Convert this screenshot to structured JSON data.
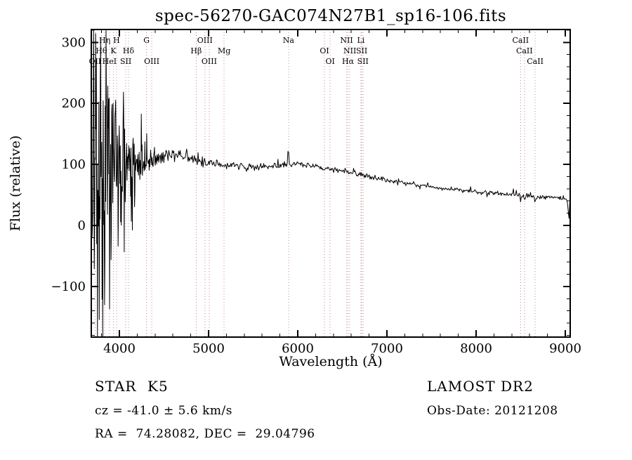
{
  "title": "spec-56270-GAC074N27B1_sp16-106.fits",
  "chart_data": {
    "type": "line",
    "title": "spec-56270-GAC074N27B1_sp16-106.fits",
    "xlabel": "Wavelength (Å)",
    "ylabel": "Flux (relative)",
    "xlim": [
      3685,
      9055
    ],
    "ylim": [
      -183,
      321
    ],
    "xticks": [
      4000,
      5000,
      6000,
      7000,
      8000,
      9000
    ],
    "yticks": [
      -100,
      0,
      100,
      200,
      300
    ],
    "x_minor_step": 200,
    "y_minor_step": 20,
    "grid": false,
    "legend": "none",
    "line_color": "#000000",
    "marker_color": "#c98b8b",
    "spectral_lines": [
      {
        "label": "Hη",
        "wavelength": 3835,
        "row": 1
      },
      {
        "label": "H",
        "wavelength": 3968,
        "row": 1
      },
      {
        "label": "G",
        "wavelength": 4305,
        "row": 1
      },
      {
        "label": "OIII",
        "wavelength": 4959,
        "row": 1
      },
      {
        "label": "Na",
        "wavelength": 5896,
        "row": 1
      },
      {
        "label": "NII",
        "wavelength": 6548,
        "row": 1
      },
      {
        "label": "Li",
        "wavelength": 6708,
        "row": 1
      },
      {
        "label": "CaII",
        "wavelength": 8498,
        "row": 1
      },
      {
        "label": "Hθ",
        "wavelength": 3798,
        "row": 2
      },
      {
        "label": "K",
        "wavelength": 3933,
        "row": 2
      },
      {
        "label": "Hδ",
        "wavelength": 4102,
        "row": 2
      },
      {
        "label": "Hβ",
        "wavelength": 4861,
        "row": 2
      },
      {
        "label": "Mg",
        "wavelength": 5175,
        "row": 2
      },
      {
        "label": "OI",
        "wavelength": 6300,
        "row": 2
      },
      {
        "label": "NII",
        "wavelength": 6584,
        "row": 2
      },
      {
        "label": "SII",
        "wavelength": 6717,
        "row": 2
      },
      {
        "label": "CaII",
        "wavelength": 8542,
        "row": 2
      },
      {
        "label": "OII",
        "wavelength": 3727,
        "row": 3
      },
      {
        "label": "HeI",
        "wavelength": 3889,
        "row": 3
      },
      {
        "label": "SII",
        "wavelength": 4072,
        "row": 3
      },
      {
        "label": "OIII",
        "wavelength": 4363,
        "row": 3
      },
      {
        "label": "OIII",
        "wavelength": 5007,
        "row": 3
      },
      {
        "label": "OI",
        "wavelength": 6364,
        "row": 3
      },
      {
        "label": "Hα",
        "wavelength": 6563,
        "row": 3
      },
      {
        "label": "SII",
        "wavelength": 6731,
        "row": 3
      },
      {
        "label": "CaII",
        "wavelength": 8662,
        "row": 3
      }
    ],
    "continuum": [
      [
        3686,
        70
      ],
      [
        3750,
        85
      ],
      [
        3850,
        95
      ],
      [
        3950,
        90
      ],
      [
        4050,
        95
      ],
      [
        4150,
        100
      ],
      [
        4300,
        105
      ],
      [
        4450,
        112
      ],
      [
        4600,
        118
      ],
      [
        4800,
        108
      ],
      [
        5000,
        104
      ],
      [
        5200,
        98
      ],
      [
        5400,
        97
      ],
      [
        5600,
        95
      ],
      [
        5800,
        98
      ],
      [
        6000,
        102
      ],
      [
        6200,
        97
      ],
      [
        6400,
        92
      ],
      [
        6600,
        87
      ],
      [
        6800,
        80
      ],
      [
        7000,
        74
      ],
      [
        7200,
        69
      ],
      [
        7400,
        65
      ],
      [
        7600,
        61
      ],
      [
        7800,
        58
      ],
      [
        8000,
        55
      ],
      [
        8200,
        53
      ],
      [
        8400,
        51
      ],
      [
        8600,
        48
      ],
      [
        8800,
        46
      ],
      [
        9000,
        44
      ],
      [
        9025,
        42
      ],
      [
        9040,
        6
      ],
      [
        9050,
        36
      ],
      [
        9055,
        34
      ]
    ],
    "noise_amplitude": [
      [
        3686,
        180
      ],
      [
        3720,
        220
      ],
      [
        3780,
        200
      ],
      [
        3840,
        185
      ],
      [
        3900,
        170
      ],
      [
        3960,
        155
      ],
      [
        4020,
        120
      ],
      [
        4080,
        85
      ],
      [
        4140,
        60
      ],
      [
        4200,
        48
      ],
      [
        4260,
        38
      ],
      [
        4320,
        28
      ],
      [
        4380,
        20
      ],
      [
        4450,
        15
      ],
      [
        4550,
        12
      ],
      [
        4700,
        10
      ],
      [
        4900,
        9
      ],
      [
        5100,
        8
      ],
      [
        5400,
        7
      ],
      [
        5700,
        6.5
      ],
      [
        6000,
        6
      ],
      [
        6300,
        5.5
      ],
      [
        6600,
        5
      ],
      [
        7000,
        4.5
      ],
      [
        7500,
        4
      ],
      [
        8000,
        4
      ],
      [
        8500,
        4.5
      ],
      [
        8800,
        5
      ],
      [
        9055,
        5
      ]
    ],
    "features": [
      {
        "name": "na-sky-residual-spike",
        "center": 5893,
        "sigma": 9,
        "height": 26
      },
      {
        "name": "caii-8498-absorption",
        "center": 8498,
        "sigma": 5,
        "height": -8
      },
      {
        "name": "caii-8542-absorption",
        "center": 8542,
        "sigma": 6,
        "height": -10
      },
      {
        "name": "caii-8662-absorption",
        "center": 8662,
        "sigma": 6,
        "height": -9
      }
    ],
    "noise_seed": 20121208
  },
  "annotations": {
    "object_type": "STAR",
    "subclass": "K5",
    "survey": "LAMOST DR2",
    "cz": "cz = -41.0 ± 5.6 km/s",
    "obs_date": "Obs-Date: 20121208",
    "ra_dec": "RA =  74.28082, DEC =  29.04796"
  }
}
